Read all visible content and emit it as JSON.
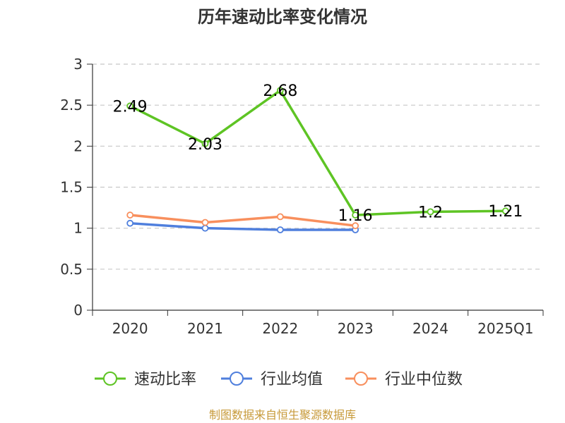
{
  "chart_data": {
    "type": "line",
    "title": "历年速动比率变化情况",
    "categories": [
      "2020",
      "2021",
      "2022",
      "2023",
      "2024",
      "2025Q1"
    ],
    "ylim": [
      0,
      3
    ],
    "yticks": [
      0,
      0.5,
      1,
      1.5,
      2,
      2.5,
      3
    ],
    "ytick_labels": [
      "0",
      "0.5",
      "1",
      "1.5",
      "2",
      "2.5",
      "3"
    ],
    "grid": true,
    "legend_position": "bottom",
    "series": [
      {
        "name": "速动比率",
        "color": "#5ec424",
        "values": [
          2.49,
          2.03,
          2.68,
          1.16,
          1.2,
          1.21
        ],
        "labels": [
          "2.49",
          "2.03",
          "2.68",
          "1.16",
          "1.2",
          "1.21"
        ],
        "show_labels": true
      },
      {
        "name": "行业均值",
        "color": "#4f7fdd",
        "values": [
          1.06,
          1.0,
          0.98,
          0.98,
          null,
          null
        ],
        "show_labels": false
      },
      {
        "name": "行业中位数",
        "color": "#f88f5d",
        "values": [
          1.16,
          1.07,
          1.14,
          1.03,
          null,
          null
        ],
        "show_labels": false
      }
    ]
  },
  "source_text": "制图数据来自恒生聚源数据库"
}
